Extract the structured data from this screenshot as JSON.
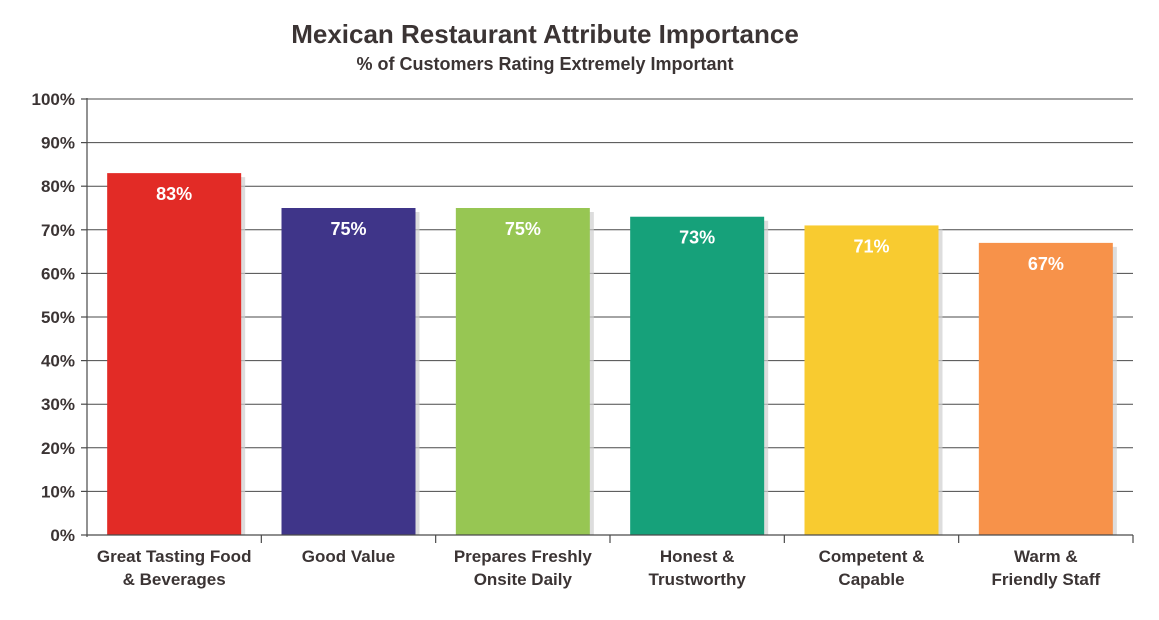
{
  "chart_data": {
    "type": "bar",
    "title": "Mexican Restaurant Attribute Importance",
    "subtitle": "% of Customers Rating Extremely Important",
    "categories": [
      [
        "Great Tasting Food",
        "& Beverages"
      ],
      [
        "Good Value"
      ],
      [
        "Prepares Freshly",
        "Onsite Daily"
      ],
      [
        "Honest &",
        "Trustworthy"
      ],
      [
        "Competent &",
        "Capable"
      ],
      [
        "Warm &",
        "Friendly Staff"
      ]
    ],
    "values": [
      83,
      75,
      75,
      73,
      71,
      67
    ],
    "data_labels": [
      "83%",
      "75%",
      "75%",
      "73%",
      "71%",
      "67%"
    ],
    "colors": [
      "#e22b26",
      "#3f3589",
      "#97c653",
      "#16a17a",
      "#f8cb30",
      "#f7924a"
    ],
    "ylim": [
      0,
      100
    ],
    "yticks": [
      0,
      10,
      20,
      30,
      40,
      50,
      60,
      70,
      80,
      90,
      100
    ],
    "ytick_labels": [
      "0%",
      "10%",
      "20%",
      "30%",
      "40%",
      "50%",
      "60%",
      "70%",
      "80%",
      "90%",
      "100%"
    ],
    "grid": true,
    "legend": "none",
    "xlabel": "",
    "ylabel": ""
  }
}
